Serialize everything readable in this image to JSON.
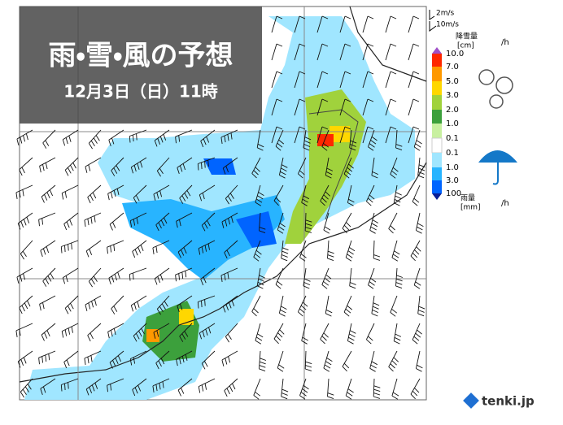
{
  "header": {
    "title": "雨・雪・風の予想",
    "datetime": "12月3日（日）11時"
  },
  "legend": {
    "wind": [
      "2m/s",
      "10m/s"
    ],
    "snow": {
      "label": "降雪量",
      "unit": "[cm]",
      "per": "/h"
    },
    "scale": [
      "10.0",
      "7.0",
      "5.0",
      "3.0",
      "2.0",
      "1.0",
      "0.1",
      "0.1",
      "1.0",
      "3.0",
      "100"
    ],
    "rain": {
      "label": "雨量",
      "unit": "[mm]",
      "per": "/h"
    }
  },
  "brand": "tenki.jp"
}
